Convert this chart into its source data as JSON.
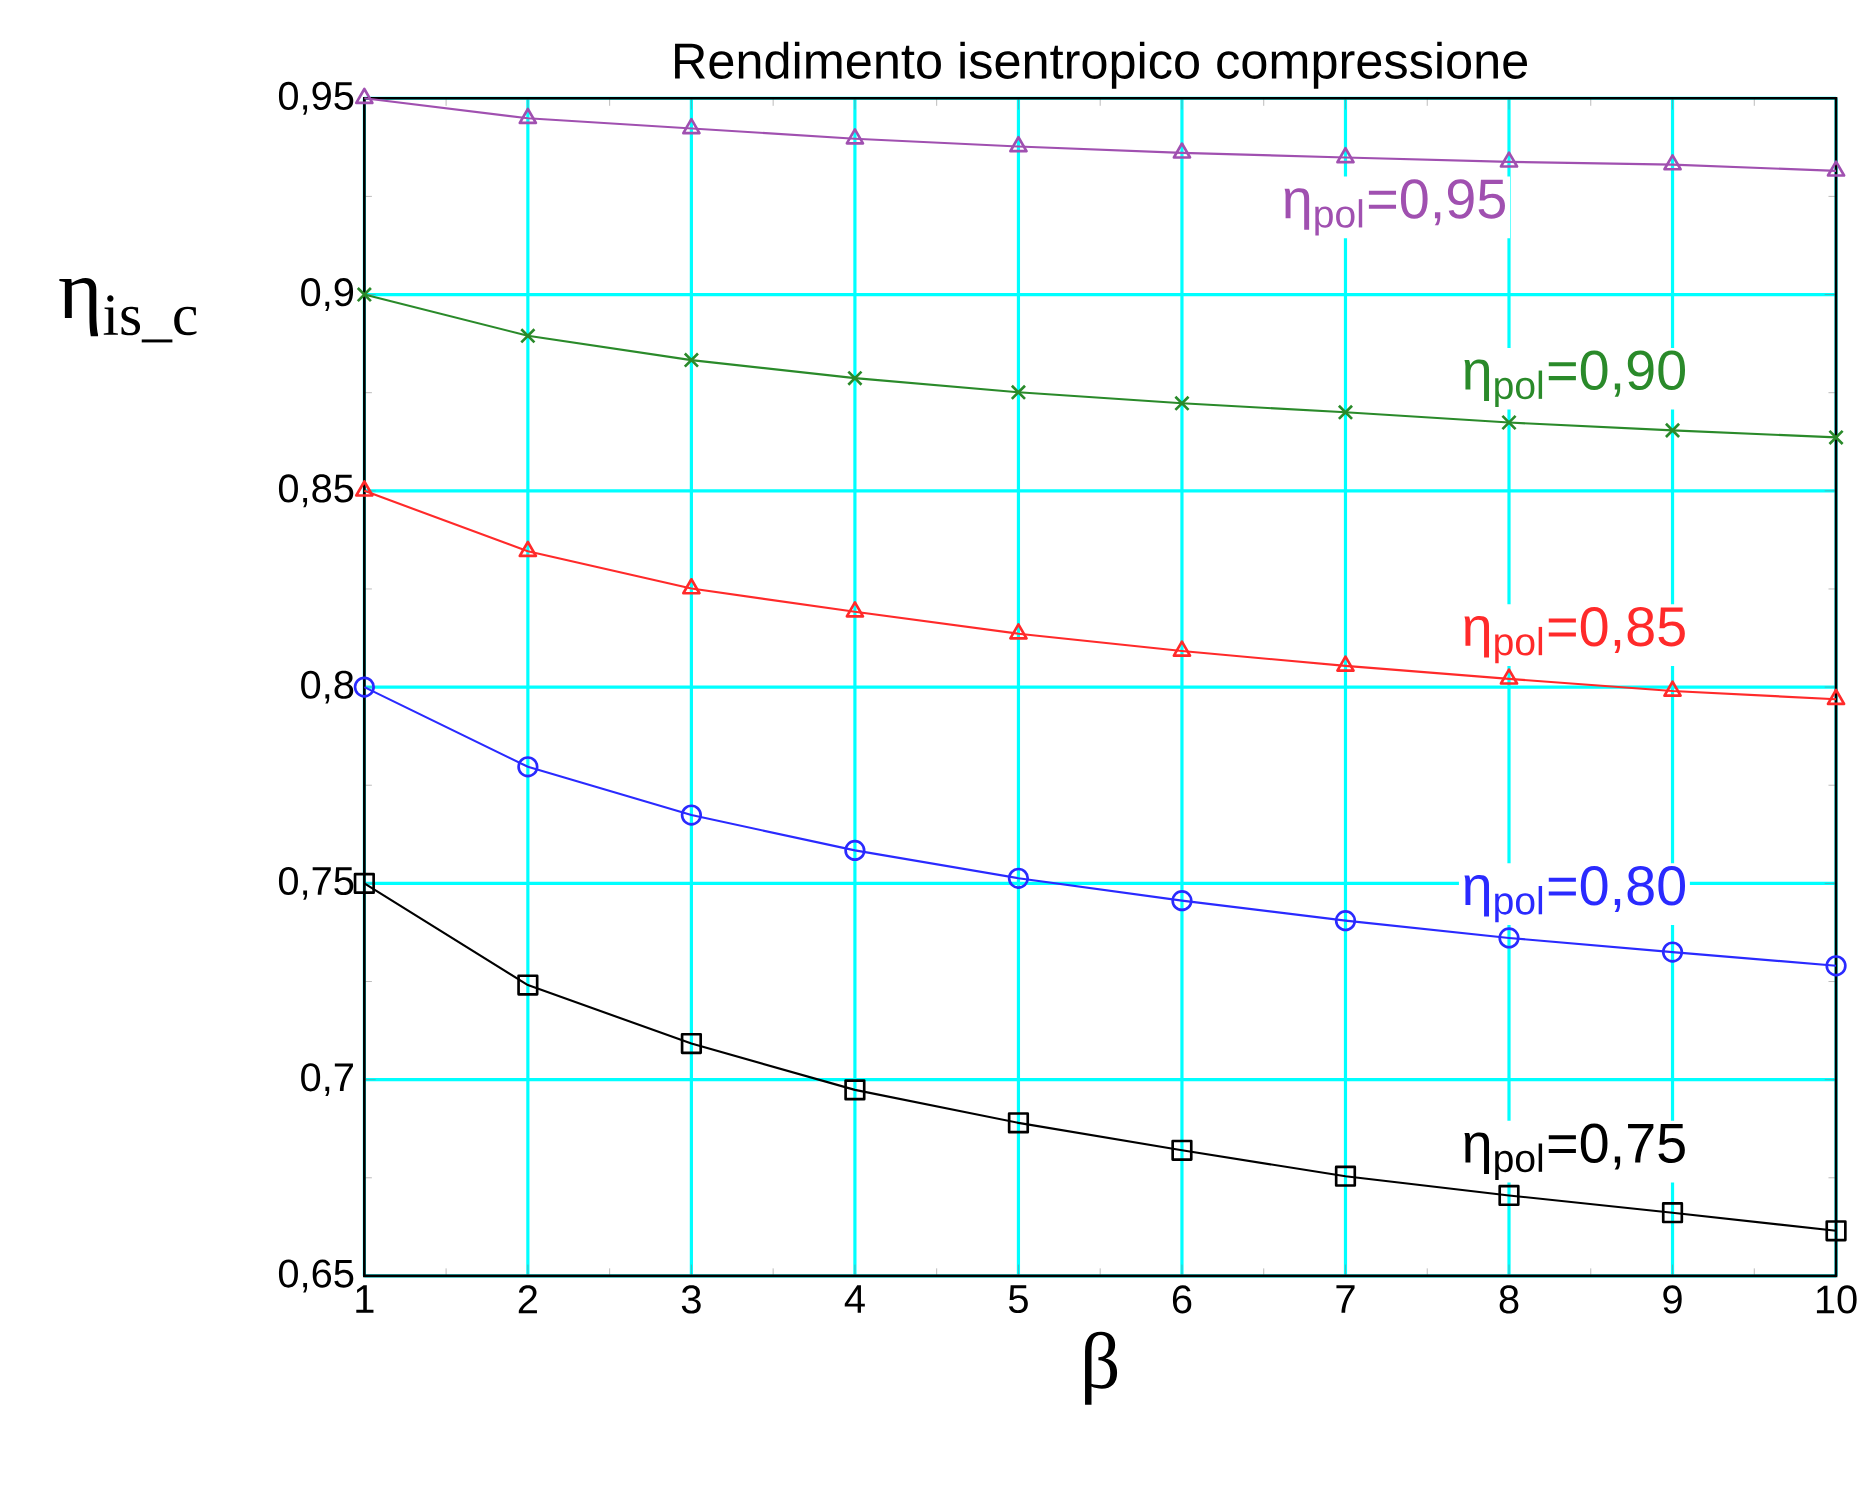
{
  "chart_data": {
    "type": "line",
    "title": "Rendimento isentropico compressione",
    "xlabel": "β",
    "ylabel": "η$_{is_c}$",
    "x": [
      1,
      2,
      3,
      4,
      5,
      6,
      7,
      8,
      9,
      10
    ],
    "series": [
      {
        "name": "η$_{pol}$=0,95",
        "color": "#a050b0",
        "marker": "triangle",
        "values": [
          0.95,
          0.9449,
          0.9423,
          0.9397,
          0.9377,
          0.9361,
          0.9349,
          0.9338,
          0.9331,
          0.9315
        ]
      },
      {
        "name": "η$_{pol}$=0,90",
        "color": "#2a8a2a",
        "marker": "cross",
        "values": [
          0.9,
          0.8895,
          0.8833,
          0.8787,
          0.8751,
          0.8723,
          0.87,
          0.8674,
          0.8654,
          0.8636
        ]
      },
      {
        "name": "η$_{pol}$=0,85",
        "color": "#ff2a2a",
        "marker": "triangle",
        "values": [
          0.85,
          0.8346,
          0.8251,
          0.8192,
          0.8136,
          0.8092,
          0.8054,
          0.8021,
          0.799,
          0.7969
        ]
      },
      {
        "name": "η$_{pol}$=0,80",
        "color": "#2a2aff",
        "marker": "circle",
        "values": [
          0.8,
          0.7797,
          0.7674,
          0.7584,
          0.7513,
          0.7456,
          0.7405,
          0.7361,
          0.7325,
          0.729
        ]
      },
      {
        "name": "η$_{pol}$=0,75",
        "color": "#000000",
        "marker": "square",
        "values": [
          0.75,
          0.7241,
          0.7092,
          0.6974,
          0.689,
          0.682,
          0.6754,
          0.6705,
          0.6661,
          0.6615
        ]
      }
    ],
    "xlim": [
      1,
      10
    ],
    "ylim": [
      0.65,
      0.95
    ],
    "xticks": [
      1,
      2,
      3,
      4,
      5,
      6,
      7,
      8,
      9,
      10
    ],
    "yticks": [
      {
        "value": 0.65,
        "label": "0,65"
      },
      {
        "value": 0.7,
        "label": "0,7"
      },
      {
        "value": 0.75,
        "label": "0,75"
      },
      {
        "value": 0.8,
        "label": "0,8"
      },
      {
        "value": 0.85,
        "label": "0,85"
      },
      {
        "value": 0.9,
        "label": "0,9"
      },
      {
        "value": 0.95,
        "label": "0,95"
      }
    ],
    "grid": true
  }
}
